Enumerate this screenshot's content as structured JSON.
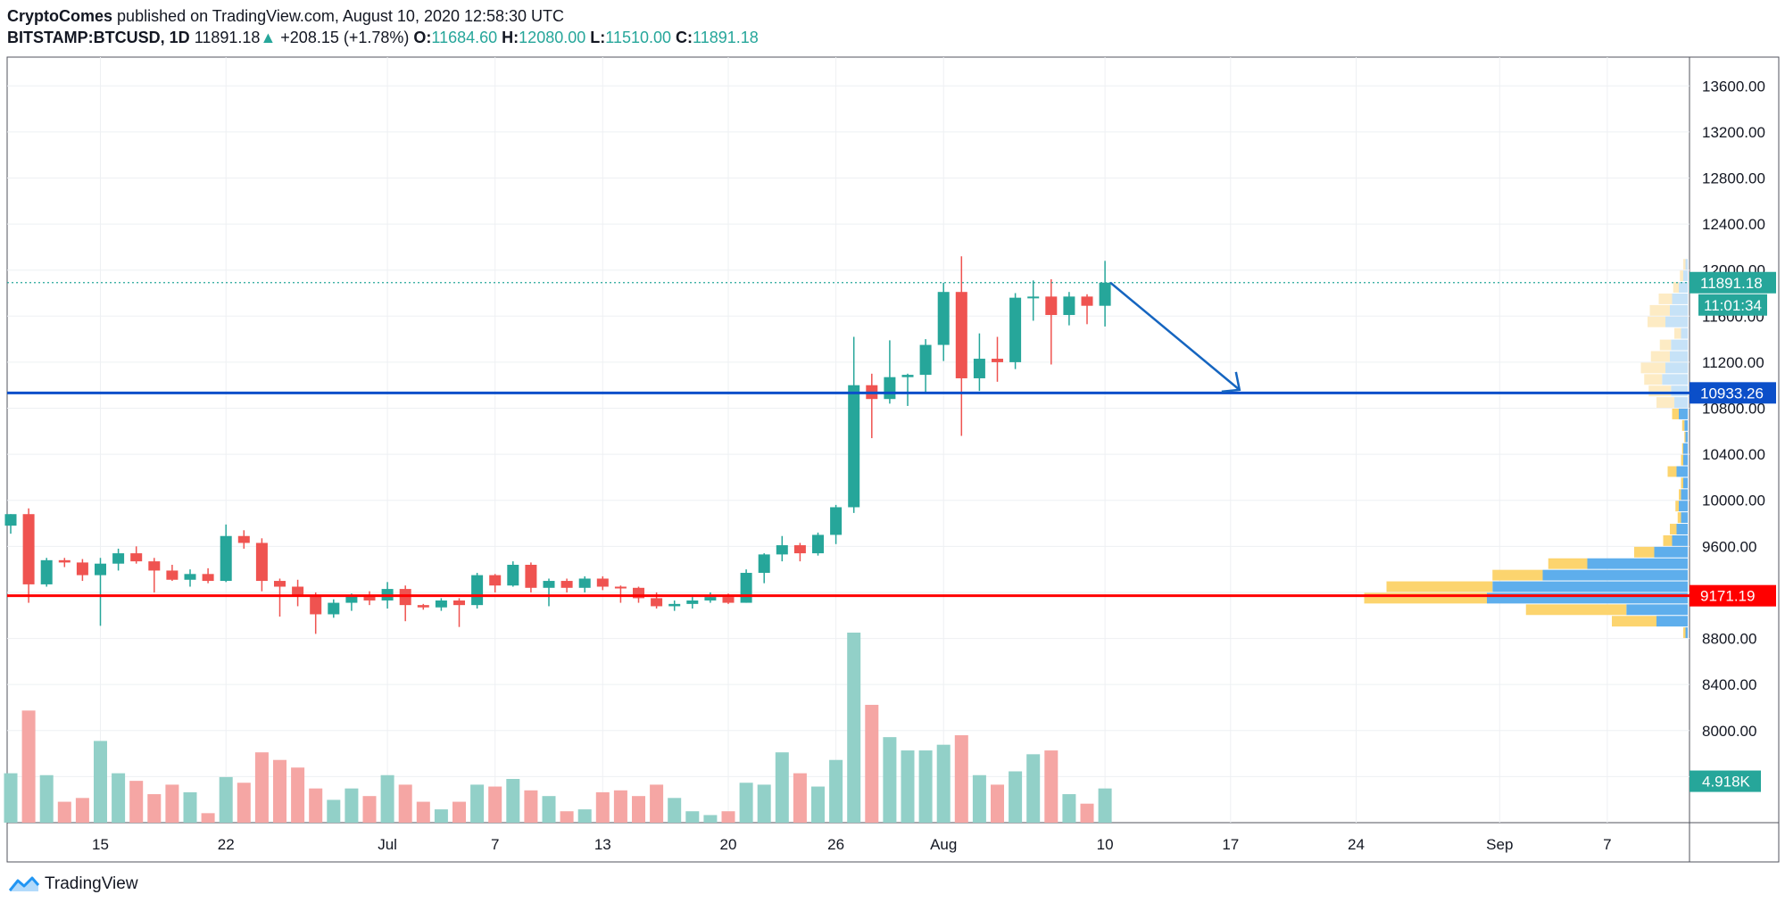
{
  "header": {
    "author": "CryptoComes",
    "published": "published on TradingView.com, August 10, 2020 12:58:30 UTC",
    "symbol": "BITSTAMP:BTCUSD, 1D",
    "last": "11891.18",
    "change_arrow": "▲",
    "change": "+208.15 (+1.78%)",
    "o_label": "O:",
    "o_value": "11684.60",
    "h_label": "H:",
    "h_value": "12080.00",
    "l_label": "L:",
    "l_value": "11510.00",
    "c_label": "C:",
    "c_value": "11891.18"
  },
  "footer": {
    "brand": "TradingView",
    "logo_icon": "tradingview-logo-icon"
  },
  "colors": {
    "up": "#26a69a",
    "down": "#ef5350",
    "vol_up": "#92d0c8",
    "vol_down": "#f5a6a4",
    "support_line": "#ff0000",
    "resistance_line": "#0b4fc9",
    "arrow": "#1565c0",
    "vp_up": "#fcd46e",
    "vp_down": "#5eaeec",
    "vp_up_faint": "#fdebc4",
    "vp_down_faint": "#c6e2f7"
  },
  "chart_data": {
    "type": "candlestick",
    "symbol": "BITSTAMP:BTCUSD",
    "timeframe": "1D",
    "y_ticks": [
      "13600.00",
      "13200.00",
      "12800.00",
      "12400.00",
      "12000.00",
      "11600.00",
      "11200.00",
      "10800.00",
      "10400.00",
      "10000.00",
      "9600.00",
      "9200.00",
      "8800.00",
      "8400.00",
      "8000.00",
      "7600.00"
    ],
    "ylim": [
      7200,
      13850
    ],
    "x_ticks": [
      {
        "label": "15",
        "index": 5
      },
      {
        "label": "22",
        "index": 12
      },
      {
        "label": "Jul",
        "index": 21
      },
      {
        "label": "7",
        "index": 27
      },
      {
        "label": "13",
        "index": 33
      },
      {
        "label": "20",
        "index": 40
      },
      {
        "label": "26",
        "index": 46
      },
      {
        "label": "Aug",
        "index": 52
      },
      {
        "label": "10",
        "index": 61
      },
      {
        "label": "17",
        "index": 68
      },
      {
        "label": "24",
        "index": 75
      },
      {
        "label": "Sep",
        "index": 83
      },
      {
        "label": "7",
        "index": 89
      }
    ],
    "first_date": "2020-06-10",
    "candles": [
      [
        9780,
        9880,
        9710,
        9880
      ],
      [
        9880,
        9930,
        9110,
        9270
      ],
      [
        9270,
        9500,
        9250,
        9480
      ],
      [
        9480,
        9500,
        9420,
        9460
      ],
      [
        9460,
        9490,
        9300,
        9350
      ],
      [
        9350,
        9500,
        8910,
        9450
      ],
      [
        9450,
        9580,
        9390,
        9540
      ],
      [
        9540,
        9600,
        9450,
        9470
      ],
      [
        9470,
        9500,
        9200,
        9390
      ],
      [
        9390,
        9440,
        9300,
        9310
      ],
      [
        9310,
        9400,
        9250,
        9360
      ],
      [
        9360,
        9410,
        9280,
        9300
      ],
      [
        9300,
        9790,
        9290,
        9690
      ],
      [
        9690,
        9740,
        9580,
        9630
      ],
      [
        9630,
        9670,
        9210,
        9300
      ],
      [
        9300,
        9320,
        8990,
        9250
      ],
      [
        9250,
        9310,
        9080,
        9170
      ],
      [
        9170,
        9200,
        8840,
        9010
      ],
      [
        9010,
        9140,
        8980,
        9110
      ],
      [
        9110,
        9190,
        9040,
        9180
      ],
      [
        9180,
        9210,
        9090,
        9130
      ],
      [
        9130,
        9290,
        9060,
        9230
      ],
      [
        9230,
        9260,
        8950,
        9090
      ],
      [
        9090,
        9100,
        9050,
        9070
      ],
      [
        9070,
        9150,
        9040,
        9130
      ],
      [
        9130,
        9150,
        8900,
        9090
      ],
      [
        9090,
        9370,
        9060,
        9350
      ],
      [
        9350,
        9360,
        9200,
        9260
      ],
      [
        9260,
        9470,
        9250,
        9440
      ],
      [
        9440,
        9460,
        9200,
        9240
      ],
      [
        9240,
        9320,
        9080,
        9300
      ],
      [
        9300,
        9320,
        9200,
        9240
      ],
      [
        9240,
        9340,
        9200,
        9320
      ],
      [
        9320,
        9340,
        9220,
        9250
      ],
      [
        9250,
        9260,
        9110,
        9240
      ],
      [
        9240,
        9250,
        9110,
        9150
      ],
      [
        9150,
        9200,
        9060,
        9080
      ],
      [
        9080,
        9130,
        9040,
        9100
      ],
      [
        9100,
        9160,
        9060,
        9130
      ],
      [
        9130,
        9200,
        9110,
        9160
      ],
      [
        9160,
        9190,
        9100,
        9110
      ],
      [
        9110,
        9400,
        9110,
        9370
      ],
      [
        9370,
        9540,
        9280,
        9530
      ],
      [
        9530,
        9690,
        9470,
        9610
      ],
      [
        9610,
        9630,
        9470,
        9540
      ],
      [
        9540,
        9720,
        9520,
        9700
      ],
      [
        9700,
        9960,
        9620,
        9940
      ],
      [
        9940,
        11420,
        9890,
        11000
      ],
      [
        11000,
        11100,
        10540,
        10880
      ],
      [
        10880,
        11390,
        10840,
        11070
      ],
      [
        11070,
        11100,
        10820,
        11090
      ],
      [
        11090,
        11400,
        10940,
        11350
      ],
      [
        11350,
        11890,
        11210,
        11810
      ],
      [
        11810,
        12120,
        10560,
        11060
      ],
      [
        11060,
        11450,
        10950,
        11230
      ],
      [
        11230,
        11420,
        11030,
        11200
      ],
      [
        11200,
        11800,
        11140,
        11760
      ],
      [
        11760,
        11910,
        11560,
        11770
      ],
      [
        11770,
        11920,
        11180,
        11610
      ],
      [
        11610,
        11810,
        11520,
        11770
      ],
      [
        11770,
        11790,
        11530,
        11690
      ],
      [
        11690,
        12080,
        11510,
        11891
      ]
    ],
    "volume_relative": [
      0.26,
      0.59,
      0.25,
      0.11,
      0.13,
      0.43,
      0.26,
      0.22,
      0.15,
      0.2,
      0.16,
      0.05,
      0.24,
      0.21,
      0.37,
      0.33,
      0.29,
      0.18,
      0.12,
      0.18,
      0.14,
      0.25,
      0.2,
      0.11,
      0.07,
      0.11,
      0.2,
      0.19,
      0.23,
      0.17,
      0.14,
      0.06,
      0.07,
      0.16,
      0.17,
      0.14,
      0.2,
      0.13,
      0.06,
      0.04,
      0.06,
      0.21,
      0.2,
      0.37,
      0.26,
      0.19,
      0.33,
      1.0,
      0.62,
      0.45,
      0.38,
      0.38,
      0.41,
      0.46,
      0.25,
      0.2,
      0.27,
      0.36,
      0.38,
      0.15,
      0.1,
      0.18
    ],
    "volume_label": "4.918K",
    "last_price_label": "11891.18",
    "countdown_label": "11:01:34",
    "horizontal_lines": [
      {
        "name": "resistance",
        "price": 10933.26,
        "label": "10933.26",
        "color": "#0b4fc9"
      },
      {
        "name": "support",
        "price": 9171.19,
        "label": "9171.19",
        "color": "#ff0000"
      }
    ],
    "trend_arrow": {
      "from_index": 61,
      "from_price": 11891,
      "to_index": 68,
      "to_price": 10960
    },
    "volume_profile": [
      {
        "price": 8850,
        "up": 2,
        "down": 2
      },
      {
        "price": 8950,
        "up": 40,
        "down": 28
      },
      {
        "price": 9050,
        "up": 90,
        "down": 55
      },
      {
        "price": 9150,
        "up": 110,
        "down": 180
      },
      {
        "price": 9250,
        "up": 95,
        "down": 175
      },
      {
        "price": 9350,
        "up": 45,
        "down": 130
      },
      {
        "price": 9450,
        "up": 35,
        "down": 90
      },
      {
        "price": 9550,
        "up": 18,
        "down": 30
      },
      {
        "price": 9650,
        "up": 8,
        "down": 14
      },
      {
        "price": 9750,
        "up": 6,
        "down": 10
      },
      {
        "price": 9850,
        "up": 3,
        "down": 6
      },
      {
        "price": 9950,
        "up": 3,
        "down": 8
      },
      {
        "price": 10050,
        "up": 2,
        "down": 6
      },
      {
        "price": 10150,
        "up": 2,
        "down": 4
      },
      {
        "price": 10250,
        "up": 8,
        "down": 10
      },
      {
        "price": 10350,
        "up": 2,
        "down": 4
      },
      {
        "price": 10450,
        "up": 1,
        "down": 4
      },
      {
        "price": 10550,
        "up": 1,
        "down": 2
      },
      {
        "price": 10650,
        "up": 2,
        "down": 3
      },
      {
        "price": 10750,
        "up": 6,
        "down": 8
      },
      {
        "price": 10850,
        "up": 16,
        "down": 12
      },
      {
        "price": 10950,
        "up": 20,
        "down": 15
      },
      {
        "price": 11050,
        "up": 16,
        "down": 23
      },
      {
        "price": 11150,
        "up": 22,
        "down": 20
      },
      {
        "price": 11250,
        "up": 17,
        "down": 16
      },
      {
        "price": 11350,
        "up": 10,
        "down": 15
      },
      {
        "price": 11450,
        "up": 6,
        "down": 6
      },
      {
        "price": 11550,
        "up": 16,
        "down": 20
      },
      {
        "price": 11650,
        "up": 18,
        "down": 16
      },
      {
        "price": 11750,
        "up": 12,
        "down": 14
      },
      {
        "price": 11850,
        "up": 5,
        "down": 8
      },
      {
        "price": 11950,
        "up": 3,
        "down": 4
      },
      {
        "price": 12050,
        "up": 2,
        "down": 2
      }
    ]
  }
}
